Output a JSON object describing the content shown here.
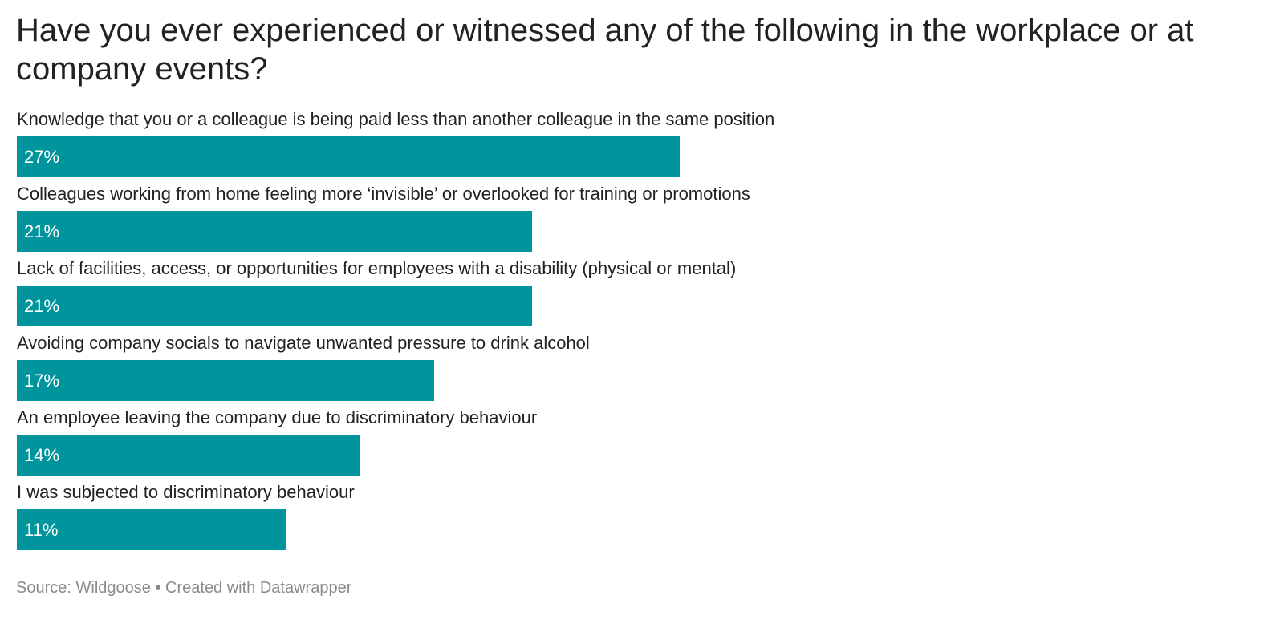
{
  "title": "Have you ever experienced or witnessed any of the following in the workplace or at company events?",
  "footer": {
    "source_label": "Source:",
    "source": "Wildgoose",
    "separator": "•",
    "credit": "Created with Datawrapper"
  },
  "colors": {
    "bar": "#00959c",
    "value_label": "#ffffff",
    "text": "#222222",
    "footer": "#8a8a8a"
  },
  "chart_data": {
    "type": "bar",
    "orientation": "horizontal",
    "title": "Have you ever experienced or witnessed any of the following in the workplace or at company events?",
    "categories": [
      "Knowledge that you or a colleague is being paid less than another colleague in the same position",
      "Colleagues working from home feeling more ‘invisible’ or overlooked for training or promotions",
      "Lack of facilities, access, or opportunities for employees with a disability (physical or mental)",
      "Avoiding company socials to navigate unwanted pressure to drink alcohol",
      "An employee leaving the company due to discriminatory behaviour",
      "I was subjected to discriminatory behaviour"
    ],
    "values": [
      27,
      21,
      21,
      17,
      14,
      11
    ],
    "value_labels": [
      "27%",
      "21%",
      "21%",
      "17%",
      "14%",
      "11%"
    ],
    "unit": "%",
    "xlim": [
      0,
      51
    ],
    "grid": false,
    "legend": "none",
    "label_placement": "above-bar",
    "value_label_placement": "inside-left"
  }
}
